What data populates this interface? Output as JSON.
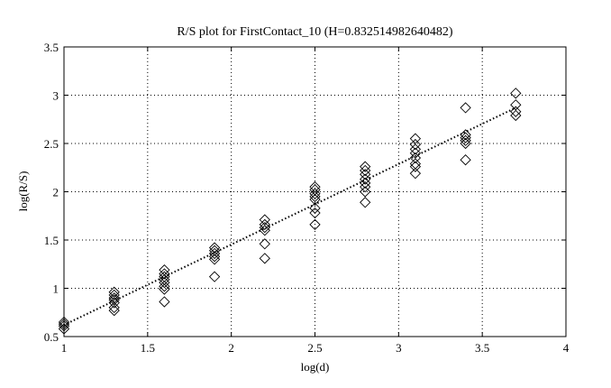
{
  "chart_data": {
    "type": "scatter",
    "title": "R/S plot for FirstContact_10 (H=0.832514982640482)",
    "xlabel": "log(d)",
    "ylabel": "log(R/S)",
    "xlim": [
      1,
      4
    ],
    "ylim": [
      0.5,
      3.5
    ],
    "x_ticks": [
      1,
      1.5,
      2,
      2.5,
      3,
      3.5,
      4
    ],
    "x_tick_labels": [
      "1",
      "1.5",
      "2",
      "2.5",
      "3",
      "3.5",
      "4"
    ],
    "y_ticks": [
      0.5,
      1,
      1.5,
      2,
      2.5,
      3,
      3.5
    ],
    "y_tick_labels": [
      "0.5",
      "1",
      "1.5",
      "2",
      "2.5",
      "3",
      "3.5"
    ],
    "grid": true,
    "grid_style": "dotted",
    "marker": "diamond-open",
    "series": [
      {
        "marker": "diamond",
        "points": [
          [
            1.0,
            0.58
          ],
          [
            1.0,
            0.61
          ],
          [
            1.0,
            0.63
          ],
          [
            1.0,
            0.65
          ],
          [
            1.3,
            0.77
          ],
          [
            1.3,
            0.8
          ],
          [
            1.3,
            0.85
          ],
          [
            1.3,
            0.88
          ],
          [
            1.3,
            0.9
          ],
          [
            1.3,
            0.93
          ],
          [
            1.3,
            0.96
          ],
          [
            1.6,
            0.86
          ],
          [
            1.6,
            0.99
          ],
          [
            1.6,
            1.02
          ],
          [
            1.6,
            1.06
          ],
          [
            1.6,
            1.09
          ],
          [
            1.6,
            1.12
          ],
          [
            1.6,
            1.15
          ],
          [
            1.6,
            1.19
          ],
          [
            1.9,
            1.12
          ],
          [
            1.9,
            1.3
          ],
          [
            1.9,
            1.33
          ],
          [
            1.9,
            1.36
          ],
          [
            1.9,
            1.39
          ],
          [
            1.9,
            1.42
          ],
          [
            2.2,
            1.31
          ],
          [
            2.2,
            1.46
          ],
          [
            2.2,
            1.6
          ],
          [
            2.2,
            1.63
          ],
          [
            2.2,
            1.66
          ],
          [
            2.2,
            1.71
          ],
          [
            2.5,
            1.66
          ],
          [
            2.5,
            1.78
          ],
          [
            2.5,
            1.83
          ],
          [
            2.5,
            1.92
          ],
          [
            2.5,
            1.95
          ],
          [
            2.5,
            1.98
          ],
          [
            2.5,
            2.02
          ],
          [
            2.5,
            2.05
          ],
          [
            2.8,
            1.89
          ],
          [
            2.8,
            2.0
          ],
          [
            2.8,
            2.05
          ],
          [
            2.8,
            2.09
          ],
          [
            2.8,
            2.13
          ],
          [
            2.8,
            2.18
          ],
          [
            2.8,
            2.22
          ],
          [
            2.8,
            2.26
          ],
          [
            3.1,
            2.19
          ],
          [
            3.1,
            2.26
          ],
          [
            3.1,
            2.29
          ],
          [
            3.1,
            2.35
          ],
          [
            3.1,
            2.4
          ],
          [
            3.1,
            2.44
          ],
          [
            3.1,
            2.49
          ],
          [
            3.1,
            2.55
          ],
          [
            3.4,
            2.33
          ],
          [
            3.4,
            2.5
          ],
          [
            3.4,
            2.53
          ],
          [
            3.4,
            2.56
          ],
          [
            3.4,
            2.59
          ],
          [
            3.4,
            2.87
          ],
          [
            3.7,
            2.79
          ],
          [
            3.7,
            2.83
          ],
          [
            3.7,
            2.9
          ],
          [
            3.7,
            3.02
          ]
        ]
      },
      {
        "type": "line",
        "style": "dotted",
        "x": [
          1.0,
          3.7
        ],
        "y": [
          0.62,
          2.87
        ]
      }
    ]
  }
}
